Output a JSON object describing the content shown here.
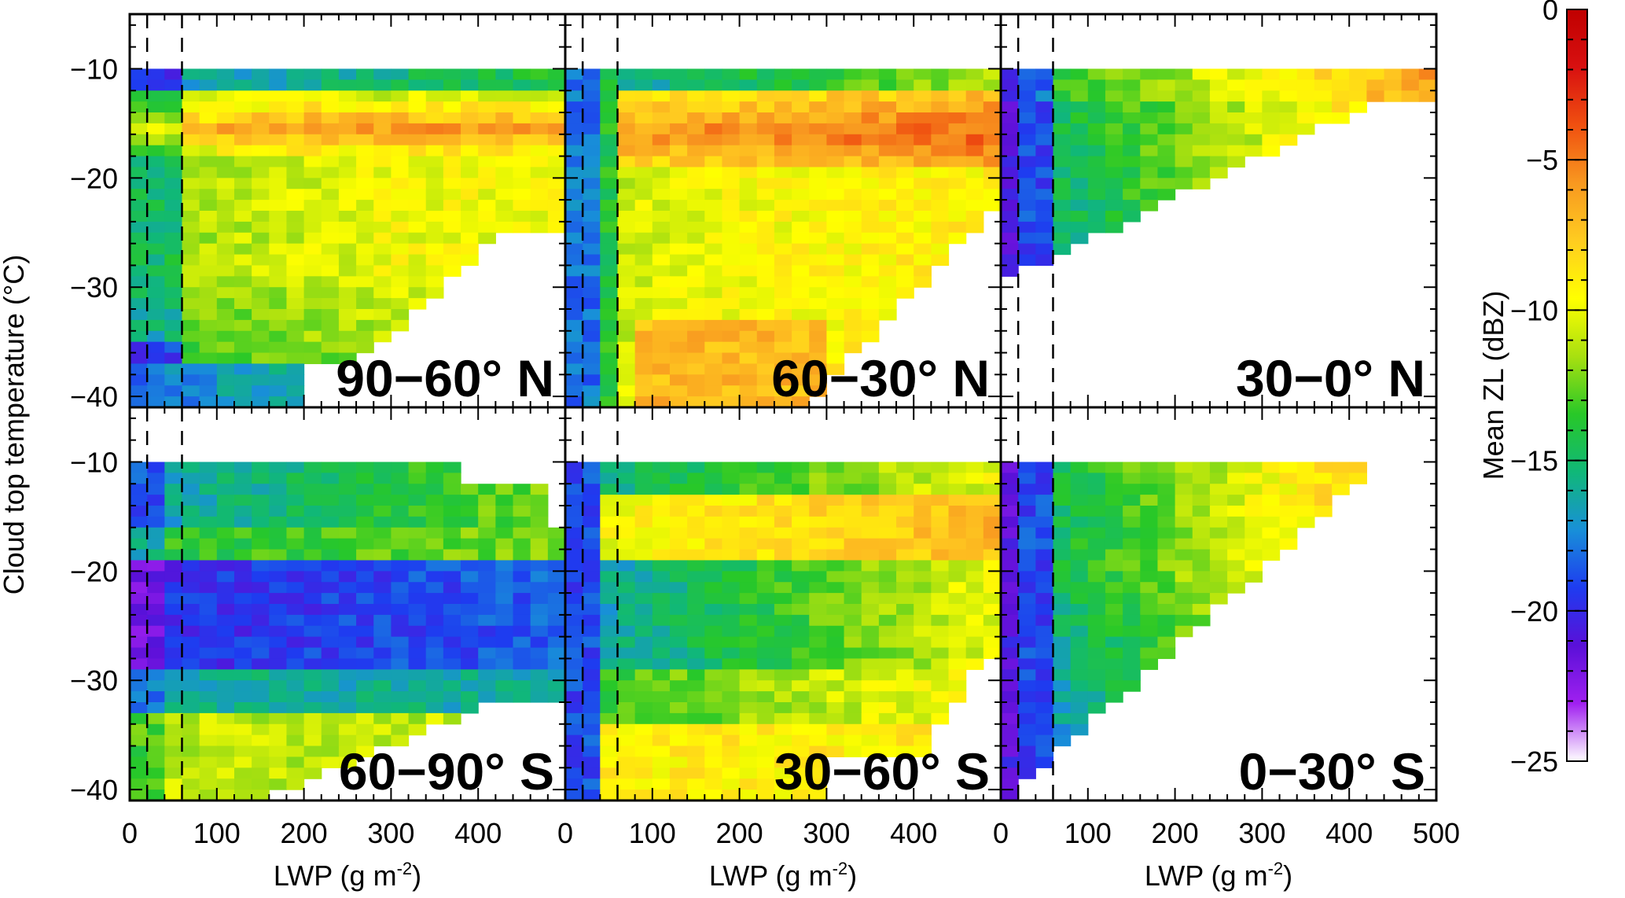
{
  "colorbar": {
    "label": "Mean ZL (dBZ)",
    "ticks": [
      "0",
      "−5",
      "−10",
      "−15",
      "−20",
      "−25"
    ],
    "stops": [
      "#ffffff",
      "#a020f0",
      "#5a10d8",
      "#1e3cf0",
      "#1890d8",
      "#10b878",
      "#28c828",
      "#a8e010",
      "#ffff00",
      "#ffcc20",
      "#f89820",
      "#f05010",
      "#d81010",
      "#c00000"
    ]
  },
  "y_axis": {
    "label": "Cloud top temperature (°C)",
    "ticks_top": [
      "−10",
      "−20",
      "−30",
      "−40"
    ],
    "ticks_bottom": [
      "−10",
      "−20",
      "−30",
      "−40"
    ]
  },
  "x_axis": {
    "label_main": "LWP (g m",
    "label_sup": "-2",
    "label_close": ")",
    "ticks_left": [
      "0",
      "100",
      "200",
      "300",
      "400"
    ],
    "ticks_middle": [
      "0",
      "100",
      "200",
      "300",
      "400"
    ],
    "ticks_right": [
      "0",
      "100",
      "200",
      "300",
      "400",
      "500"
    ]
  },
  "chart_data": {
    "type": "heatmap",
    "xlabel": "LWP (g m-2)",
    "ylabel": "Cloud top temperature (°C)",
    "colorbar_label": "Mean ZL (dBZ)",
    "xlim": [
      0,
      500
    ],
    "ylim": [
      -41,
      -5
    ],
    "clim": [
      -25,
      0
    ],
    "dashed_lines_x": [
      20,
      60
    ],
    "panels": [
      {
        "name": "90−60° N",
        "row": 0,
        "col": 0
      },
      {
        "name": "60−30° N",
        "row": 0,
        "col": 1
      },
      {
        "name": "30−0° N",
        "row": 0,
        "col": 2
      },
      {
        "name": "60−90° S",
        "row": 1,
        "col": 0
      },
      {
        "name": "30−60° S",
        "row": 1,
        "col": 1
      },
      {
        "name": "0−30° S",
        "row": 1,
        "col": 2
      }
    ]
  }
}
